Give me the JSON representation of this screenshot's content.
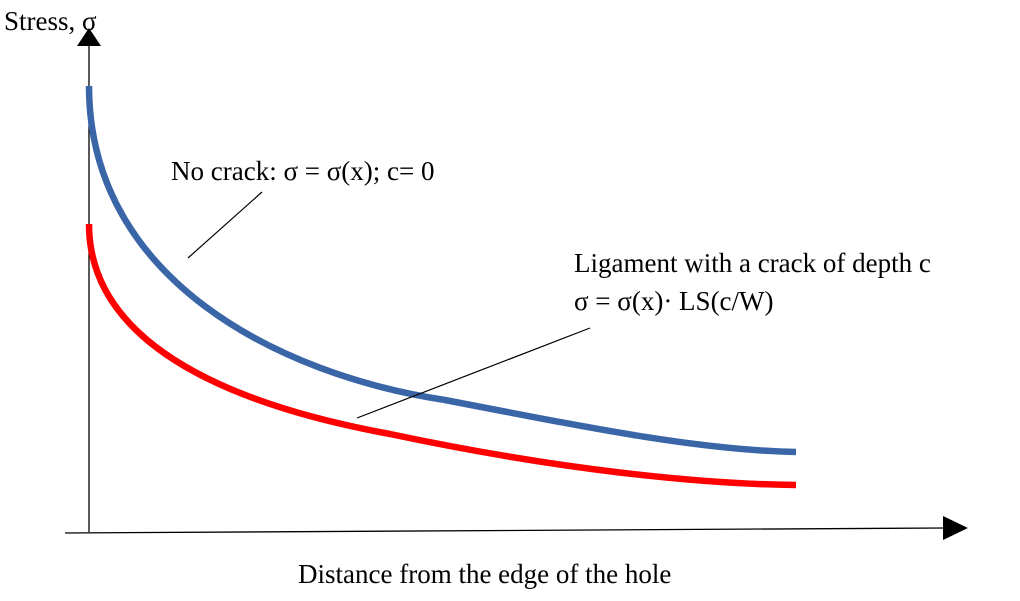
{
  "diagram": {
    "y_axis_label": "Stress, σ",
    "x_axis_label": "Distance from the edge of the hole",
    "curves": [
      {
        "id": "no-crack",
        "label_line1": "No crack: σ = σ(x); c= 0",
        "color": "#3a66a8"
      },
      {
        "id": "cracked-ligament",
        "label_line1": "Ligament with a crack of depth c",
        "label_line2": "σ = σ(x)· LS(c/W)",
        "color": "#ff0000"
      }
    ],
    "axis_color": "#000000",
    "leader_color": "#000000"
  }
}
